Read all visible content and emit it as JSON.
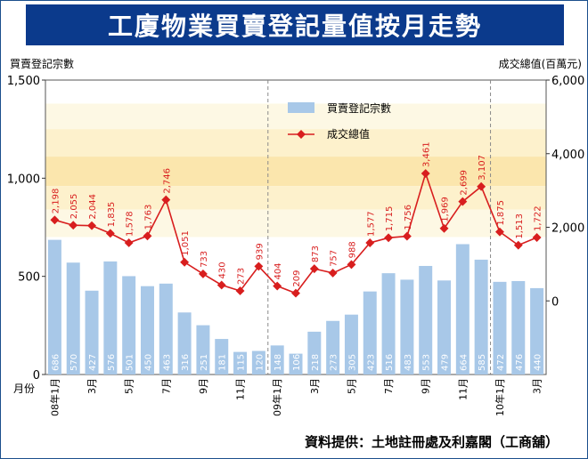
{
  "title": "工廈物業買賣登記量值按月走勢",
  "source": "資料提供：土地註冊處及利嘉閣（工商舖）",
  "colors": {
    "banner": "#0b3a8c",
    "bar": "#a8c8e8",
    "line": "#d81e1e",
    "divider": "#8a8a8a"
  },
  "chart_data": {
    "type": "bar",
    "y_left_label": "買賣登記宗數",
    "y_right_label": "成交總值(百萬元)",
    "x_label": "月份",
    "y_left_range": [
      0,
      1500
    ],
    "y_left_ticks": [
      "0",
      "500",
      "1,000",
      "1,500"
    ],
    "y_right_range": [
      -2000,
      6000
    ],
    "y_right_ticks": [
      "0",
      "2,000",
      "4,000",
      "6,000"
    ],
    "x_tick_labels": [
      "08年1月",
      "",
      "3月",
      "",
      "5月",
      "",
      "7月",
      "",
      "9月",
      "",
      "11月",
      "",
      "09年1月",
      "",
      "3月",
      "",
      "5月",
      "",
      "7月",
      "",
      "9月",
      "",
      "11月",
      "",
      "10年1月",
      "",
      "3月"
    ],
    "series": [
      {
        "name": "買賣登記宗數",
        "type": "bar",
        "axis": "left",
        "values": [
          686,
          570,
          427,
          576,
          501,
          450,
          463,
          316,
          251,
          181,
          115,
          120,
          148,
          106,
          218,
          273,
          305,
          423,
          516,
          483,
          553,
          479,
          664,
          585,
          472,
          476,
          440
        ]
      },
      {
        "name": "成交總值",
        "type": "line",
        "axis": "right",
        "values": [
          2198,
          2055,
          2044,
          1835,
          1578,
          1763,
          2746,
          1051,
          733,
          430,
          273,
          939,
          404,
          209,
          873,
          757,
          988,
          1577,
          1715,
          1756,
          3461,
          1969,
          2699,
          3107,
          1875,
          1513,
          1722
        ],
        "labels": [
          "2,198",
          "2,055",
          "2,044",
          "1,835",
          "1,578",
          "1,763",
          "2,746",
          "1,051",
          "733",
          "430",
          "273",
          "939",
          "404",
          "209",
          "873",
          "757",
          "988",
          "1,577",
          "1,715",
          "1,756",
          "3,461",
          "1,969",
          "2,699",
          "3,107",
          "1,875",
          "1,513",
          "1,722"
        ]
      }
    ],
    "legend": "top-center",
    "year_dividers_after": [
      11,
      23
    ]
  }
}
